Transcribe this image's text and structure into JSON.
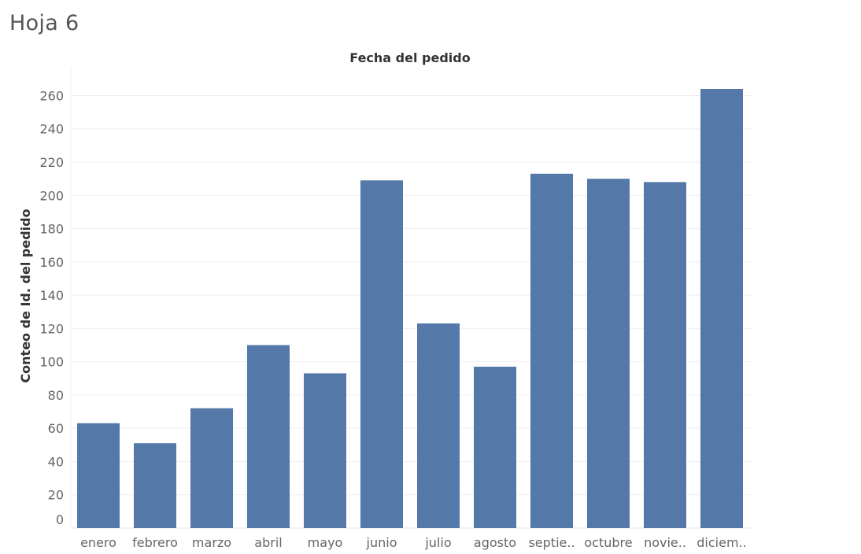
{
  "sheet": {
    "title": "Hoja 6"
  },
  "chart_data": {
    "type": "bar",
    "title": "",
    "xlabel": "Fecha del pedido",
    "ylabel": "Conteo de Id. del pedido",
    "x_axis_position": "top",
    "categories": [
      "enero",
      "febrero",
      "marzo",
      "abril",
      "mayo",
      "junio",
      "julio",
      "agosto",
      "septie..",
      "octubre",
      "novie..",
      "diciem.."
    ],
    "values": [
      63,
      51,
      72,
      110,
      93,
      209,
      123,
      97,
      213,
      210,
      208,
      264
    ],
    "ylim": [
      0,
      264
    ],
    "yticks": [
      0,
      20,
      40,
      60,
      80,
      100,
      120,
      140,
      160,
      180,
      200,
      220,
      240,
      260
    ],
    "grid": true,
    "bar_color": "#5479A9",
    "grid_color": "#EFEFEF"
  }
}
